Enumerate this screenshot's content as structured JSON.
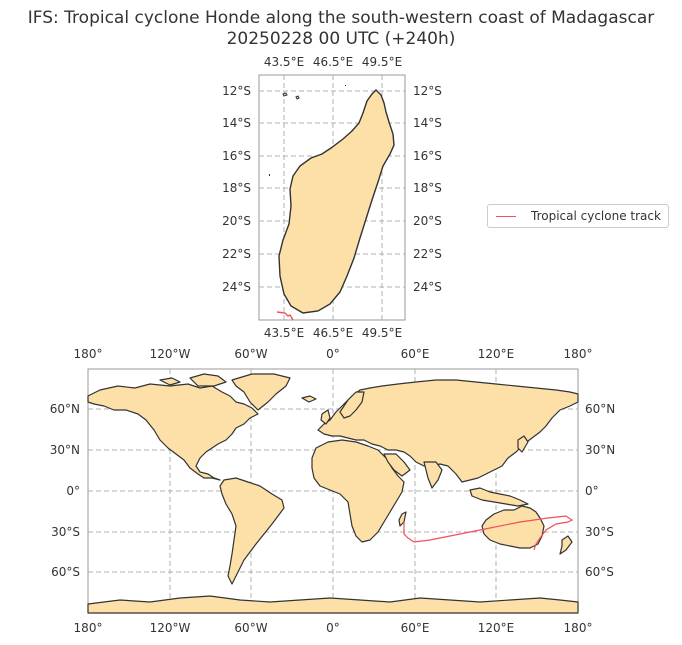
{
  "title_line1": "IFS: Tropical cyclone Honde along the south-western coast of Madagascar",
  "title_line2": "20250228 00 UTC (+240h)",
  "legend": {
    "label": "Tropical cyclone track",
    "color": "#f0505a"
  },
  "colors": {
    "land": "#fde0a8",
    "coast": "#333333",
    "grid": "#b0b0b0",
    "track": "#f0505a",
    "frame": "#999999"
  },
  "inset_map": {
    "lon_ticks": [
      "43.5°E",
      "46.5°E",
      "49.5°E"
    ],
    "lat_ticks": [
      "12°S",
      "14°S",
      "16°S",
      "18°S",
      "20°S",
      "22°S",
      "24°S"
    ],
    "region": "Madagascar"
  },
  "world_map": {
    "lon_ticks": [
      "180°",
      "120°W",
      "60°W",
      "0°",
      "60°E",
      "120°E",
      "180°"
    ],
    "lat_ticks": [
      "60°N",
      "30°N",
      "0°",
      "30°S",
      "60°S"
    ]
  }
}
